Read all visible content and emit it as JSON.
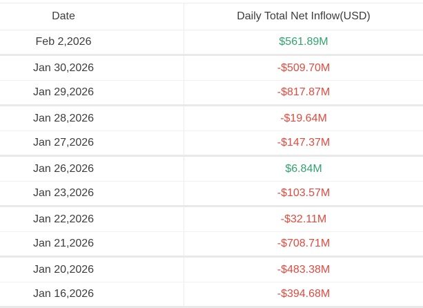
{
  "table": {
    "header": {
      "date_label": "Date",
      "value_label": "Daily Total Net Inflow(USD)"
    },
    "rows": [
      {
        "date": "Feb 2,2026",
        "value": "$561.89M",
        "direction": "positive"
      },
      {
        "date": "Jan 30,2026",
        "value": "-$509.70M",
        "direction": "negative"
      },
      {
        "date": "Jan 29,2026",
        "value": "-$817.87M",
        "direction": "negative"
      },
      {
        "date": "Jan 28,2026",
        "value": "-$19.64M",
        "direction": "negative"
      },
      {
        "date": "Jan 27,2026",
        "value": "-$147.37M",
        "direction": "negative"
      },
      {
        "date": "Jan 26,2026",
        "value": "$6.84M",
        "direction": "positive"
      },
      {
        "date": "Jan 23,2026",
        "value": "-$103.57M",
        "direction": "negative"
      },
      {
        "date": "Jan 22,2026",
        "value": "-$32.11M",
        "direction": "negative"
      },
      {
        "date": "Jan 21,2026",
        "value": "-$708.71M",
        "direction": "negative"
      },
      {
        "date": "Jan 20,2026",
        "value": "-$483.38M",
        "direction": "negative"
      },
      {
        "date": "Jan 16,2026",
        "value": "-$394.68M",
        "direction": "negative"
      }
    ],
    "colors": {
      "positive_value": "#30a46c",
      "negative_value": "#e24a3e",
      "text": "#3c3c3c",
      "border_thin": "#f1f1f1",
      "border_thick": "#e9e9e9"
    }
  }
}
